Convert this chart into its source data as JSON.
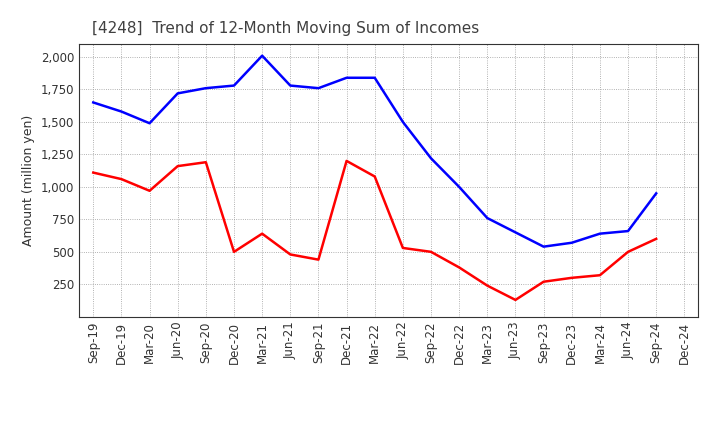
{
  "title": "[4248]  Trend of 12-Month Moving Sum of Incomes",
  "ylabel": "Amount (million yen)",
  "x_labels": [
    "Sep-19",
    "Dec-19",
    "Mar-20",
    "Jun-20",
    "Sep-20",
    "Dec-20",
    "Mar-21",
    "Jun-21",
    "Sep-21",
    "Dec-21",
    "Mar-22",
    "Jun-22",
    "Sep-22",
    "Dec-22",
    "Mar-23",
    "Jun-23",
    "Sep-23",
    "Dec-23",
    "Mar-24",
    "Jun-24",
    "Sep-24",
    "Dec-24"
  ],
  "ordinary_income": [
    1650,
    1580,
    1490,
    1720,
    1760,
    1780,
    2010,
    1780,
    1760,
    1840,
    1840,
    1500,
    1220,
    1000,
    760,
    650,
    540,
    570,
    640,
    660,
    950,
    null
  ],
  "net_income": [
    1110,
    1060,
    970,
    1160,
    1190,
    500,
    640,
    480,
    440,
    1200,
    1080,
    530,
    500,
    380,
    240,
    130,
    270,
    300,
    320,
    500,
    600,
    null
  ],
  "ordinary_color": "#0000ff",
  "net_color": "#ff0000",
  "background_color": "#ffffff",
  "grid_color": "#999999",
  "title_color": "#404040",
  "ylim": [
    0,
    2100
  ],
  "yticks": [
    250,
    500,
    750,
    1000,
    1250,
    1500,
    1750,
    2000
  ],
  "title_fontsize": 11,
  "label_fontsize": 9,
  "tick_fontsize": 8.5,
  "line_width": 1.8
}
